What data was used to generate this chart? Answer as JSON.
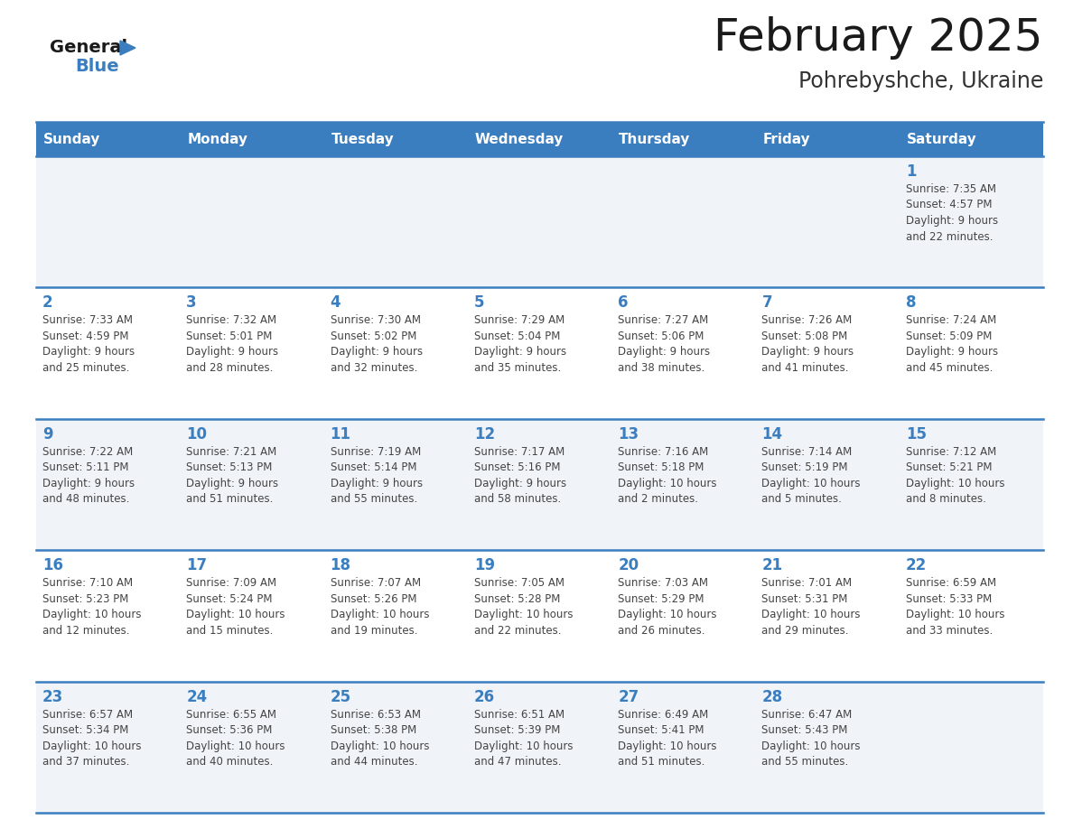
{
  "title": "February 2025",
  "subtitle": "Pohrebyshche, Ukraine",
  "days_of_week": [
    "Sunday",
    "Monday",
    "Tuesday",
    "Wednesday",
    "Thursday",
    "Friday",
    "Saturday"
  ],
  "header_bg": "#3a7ebf",
  "header_text": "#ffffff",
  "cell_bg_odd": "#f0f4f8",
  "cell_bg_even": "#ffffff",
  "border_color": "#3a7ebf",
  "day_number_color": "#3a7ebf",
  "info_text_color": "#444444",
  "title_color": "#1a1a1a",
  "subtitle_color": "#333333",
  "logo_general_color": "#1a1a1a",
  "logo_blue_color": "#3a7ebf",
  "calendar_data": [
    [
      null,
      null,
      null,
      null,
      null,
      null,
      {
        "day": 1,
        "sunrise": "7:35 AM",
        "sunset": "4:57 PM",
        "daylight_h": "9 hours",
        "daylight_m": "22 minutes."
      }
    ],
    [
      {
        "day": 2,
        "sunrise": "7:33 AM",
        "sunset": "4:59 PM",
        "daylight_h": "9 hours",
        "daylight_m": "25 minutes."
      },
      {
        "day": 3,
        "sunrise": "7:32 AM",
        "sunset": "5:01 PM",
        "daylight_h": "9 hours",
        "daylight_m": "28 minutes."
      },
      {
        "day": 4,
        "sunrise": "7:30 AM",
        "sunset": "5:02 PM",
        "daylight_h": "9 hours",
        "daylight_m": "32 minutes."
      },
      {
        "day": 5,
        "sunrise": "7:29 AM",
        "sunset": "5:04 PM",
        "daylight_h": "9 hours",
        "daylight_m": "35 minutes."
      },
      {
        "day": 6,
        "sunrise": "7:27 AM",
        "sunset": "5:06 PM",
        "daylight_h": "9 hours",
        "daylight_m": "38 minutes."
      },
      {
        "day": 7,
        "sunrise": "7:26 AM",
        "sunset": "5:08 PM",
        "daylight_h": "9 hours",
        "daylight_m": "41 minutes."
      },
      {
        "day": 8,
        "sunrise": "7:24 AM",
        "sunset": "5:09 PM",
        "daylight_h": "9 hours",
        "daylight_m": "45 minutes."
      }
    ],
    [
      {
        "day": 9,
        "sunrise": "7:22 AM",
        "sunset": "5:11 PM",
        "daylight_h": "9 hours",
        "daylight_m": "48 minutes."
      },
      {
        "day": 10,
        "sunrise": "7:21 AM",
        "sunset": "5:13 PM",
        "daylight_h": "9 hours",
        "daylight_m": "51 minutes."
      },
      {
        "day": 11,
        "sunrise": "7:19 AM",
        "sunset": "5:14 PM",
        "daylight_h": "9 hours",
        "daylight_m": "55 minutes."
      },
      {
        "day": 12,
        "sunrise": "7:17 AM",
        "sunset": "5:16 PM",
        "daylight_h": "9 hours",
        "daylight_m": "58 minutes."
      },
      {
        "day": 13,
        "sunrise": "7:16 AM",
        "sunset": "5:18 PM",
        "daylight_h": "10 hours",
        "daylight_m": "2 minutes."
      },
      {
        "day": 14,
        "sunrise": "7:14 AM",
        "sunset": "5:19 PM",
        "daylight_h": "10 hours",
        "daylight_m": "5 minutes."
      },
      {
        "day": 15,
        "sunrise": "7:12 AM",
        "sunset": "5:21 PM",
        "daylight_h": "10 hours",
        "daylight_m": "8 minutes."
      }
    ],
    [
      {
        "day": 16,
        "sunrise": "7:10 AM",
        "sunset": "5:23 PM",
        "daylight_h": "10 hours",
        "daylight_m": "12 minutes."
      },
      {
        "day": 17,
        "sunrise": "7:09 AM",
        "sunset": "5:24 PM",
        "daylight_h": "10 hours",
        "daylight_m": "15 minutes."
      },
      {
        "day": 18,
        "sunrise": "7:07 AM",
        "sunset": "5:26 PM",
        "daylight_h": "10 hours",
        "daylight_m": "19 minutes."
      },
      {
        "day": 19,
        "sunrise": "7:05 AM",
        "sunset": "5:28 PM",
        "daylight_h": "10 hours",
        "daylight_m": "22 minutes."
      },
      {
        "day": 20,
        "sunrise": "7:03 AM",
        "sunset": "5:29 PM",
        "daylight_h": "10 hours",
        "daylight_m": "26 minutes."
      },
      {
        "day": 21,
        "sunrise": "7:01 AM",
        "sunset": "5:31 PM",
        "daylight_h": "10 hours",
        "daylight_m": "29 minutes."
      },
      {
        "day": 22,
        "sunrise": "6:59 AM",
        "sunset": "5:33 PM",
        "daylight_h": "10 hours",
        "daylight_m": "33 minutes."
      }
    ],
    [
      {
        "day": 23,
        "sunrise": "6:57 AM",
        "sunset": "5:34 PM",
        "daylight_h": "10 hours",
        "daylight_m": "37 minutes."
      },
      {
        "day": 24,
        "sunrise": "6:55 AM",
        "sunset": "5:36 PM",
        "daylight_h": "10 hours",
        "daylight_m": "40 minutes."
      },
      {
        "day": 25,
        "sunrise": "6:53 AM",
        "sunset": "5:38 PM",
        "daylight_h": "10 hours",
        "daylight_m": "44 minutes."
      },
      {
        "day": 26,
        "sunrise": "6:51 AM",
        "sunset": "5:39 PM",
        "daylight_h": "10 hours",
        "daylight_m": "47 minutes."
      },
      {
        "day": 27,
        "sunrise": "6:49 AM",
        "sunset": "5:41 PM",
        "daylight_h": "10 hours",
        "daylight_m": "51 minutes."
      },
      {
        "day": 28,
        "sunrise": "6:47 AM",
        "sunset": "5:43 PM",
        "daylight_h": "10 hours",
        "daylight_m": "55 minutes."
      },
      null
    ]
  ]
}
